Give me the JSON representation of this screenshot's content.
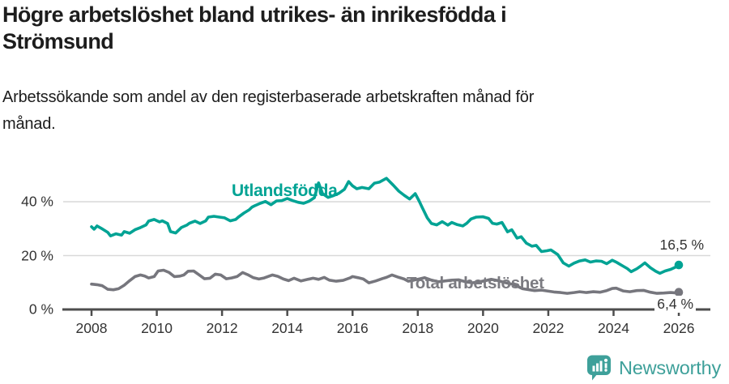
{
  "header": {
    "title_line1": "Högre arbetslöshet bland utrikes- än inrikesfödda i",
    "title_line2": "Strömsund",
    "subtitle_line1": "Arbetssökande som andel av den registerbaserade arbetskraften månad för",
    "subtitle_line2": "månad."
  },
  "colors": {
    "foreign_born_series": "#00A394",
    "total_series": "#76767D",
    "grid": "#D9D9D9",
    "axis": "#4D4D4D",
    "tick_text": "#333333",
    "brand": "#3EA09A"
  },
  "chart_data": {
    "type": "line",
    "title": "Högre arbetslöshet bland utrikes- än inrikesfödda i Strömsund",
    "subtitle": "Arbetssökande som andel av den registerbaserade arbetskraften månad för månad.",
    "unit": "%",
    "grid": "horizontal",
    "legend": "inline-labels",
    "x_axis": {
      "ticks": [
        2008,
        2010,
        2012,
        2014,
        2016,
        2018,
        2020,
        2022,
        2024,
        2026
      ],
      "range": [
        2007.1,
        2026.95
      ]
    },
    "y_axis": {
      "ticks": [
        {
          "value": 0,
          "label": "0 %"
        },
        {
          "value": 20,
          "label": "20 %"
        },
        {
          "value": 40,
          "label": "40 %"
        }
      ],
      "range": [
        0,
        52
      ]
    },
    "series": [
      {
        "name": "Utlandsfödda",
        "color": "#00A394",
        "end_label": "16,5 %",
        "end_value": 16.5,
        "points": [
          [
            2008.0,
            30.7
          ],
          [
            2008.08,
            29.8
          ],
          [
            2008.17,
            31.0
          ],
          [
            2008.33,
            29.9
          ],
          [
            2008.5,
            28.6
          ],
          [
            2008.58,
            27.3
          ],
          [
            2008.75,
            28.1
          ],
          [
            2008.92,
            27.6
          ],
          [
            2009.0,
            28.9
          ],
          [
            2009.17,
            28.3
          ],
          [
            2009.33,
            29.6
          ],
          [
            2009.5,
            30.4
          ],
          [
            2009.67,
            31.4
          ],
          [
            2009.75,
            32.8
          ],
          [
            2009.92,
            33.4
          ],
          [
            2010.08,
            32.5
          ],
          [
            2010.17,
            32.9
          ],
          [
            2010.33,
            31.9
          ],
          [
            2010.42,
            28.9
          ],
          [
            2010.58,
            28.4
          ],
          [
            2010.75,
            30.4
          ],
          [
            2010.92,
            31.3
          ],
          [
            2011.0,
            32.0
          ],
          [
            2011.17,
            32.8
          ],
          [
            2011.33,
            31.9
          ],
          [
            2011.5,
            32.9
          ],
          [
            2011.58,
            34.3
          ],
          [
            2011.75,
            34.6
          ],
          [
            2011.92,
            34.3
          ],
          [
            2012.08,
            34.0
          ],
          [
            2012.25,
            32.9
          ],
          [
            2012.42,
            33.4
          ],
          [
            2012.5,
            34.3
          ],
          [
            2012.67,
            35.8
          ],
          [
            2012.83,
            37.0
          ],
          [
            2012.92,
            38.0
          ],
          [
            2013.0,
            38.5
          ],
          [
            2013.17,
            39.4
          ],
          [
            2013.33,
            40.1
          ],
          [
            2013.5,
            38.9
          ],
          [
            2013.67,
            40.3
          ],
          [
            2013.83,
            40.4
          ],
          [
            2014.0,
            41.2
          ],
          [
            2014.17,
            40.4
          ],
          [
            2014.33,
            39.8
          ],
          [
            2014.5,
            39.4
          ],
          [
            2014.67,
            40.2
          ],
          [
            2014.83,
            41.5
          ],
          [
            2014.96,
            47.0
          ],
          [
            2015.08,
            43.0
          ],
          [
            2015.25,
            41.6
          ],
          [
            2015.42,
            42.3
          ],
          [
            2015.58,
            43.1
          ],
          [
            2015.75,
            44.6
          ],
          [
            2015.88,
            47.5
          ],
          [
            2016.0,
            45.9
          ],
          [
            2016.13,
            44.8
          ],
          [
            2016.29,
            45.3
          ],
          [
            2016.5,
            44.8
          ],
          [
            2016.67,
            46.9
          ],
          [
            2016.83,
            47.3
          ],
          [
            2017.04,
            48.7
          ],
          [
            2017.25,
            46.1
          ],
          [
            2017.42,
            43.9
          ],
          [
            2017.58,
            42.4
          ],
          [
            2017.75,
            41.0
          ],
          [
            2017.92,
            43.0
          ],
          [
            2018.04,
            40.3
          ],
          [
            2018.13,
            38.0
          ],
          [
            2018.29,
            34.0
          ],
          [
            2018.42,
            31.9
          ],
          [
            2018.58,
            31.4
          ],
          [
            2018.75,
            32.6
          ],
          [
            2018.92,
            31.3
          ],
          [
            2019.04,
            32.3
          ],
          [
            2019.21,
            31.5
          ],
          [
            2019.38,
            31.0
          ],
          [
            2019.5,
            32.0
          ],
          [
            2019.63,
            33.6
          ],
          [
            2019.79,
            34.3
          ],
          [
            2020.0,
            34.4
          ],
          [
            2020.17,
            33.8
          ],
          [
            2020.29,
            32.0
          ],
          [
            2020.42,
            31.7
          ],
          [
            2020.58,
            32.3
          ],
          [
            2020.75,
            28.8
          ],
          [
            2020.88,
            29.6
          ],
          [
            2021.04,
            26.5
          ],
          [
            2021.17,
            27.0
          ],
          [
            2021.33,
            24.6
          ],
          [
            2021.5,
            23.5
          ],
          [
            2021.63,
            23.8
          ],
          [
            2021.79,
            21.5
          ],
          [
            2021.96,
            21.8
          ],
          [
            2022.08,
            22.1
          ],
          [
            2022.29,
            20.4
          ],
          [
            2022.46,
            17.3
          ],
          [
            2022.63,
            16.1
          ],
          [
            2022.79,
            17.2
          ],
          [
            2022.96,
            18.0
          ],
          [
            2023.13,
            18.4
          ],
          [
            2023.29,
            17.6
          ],
          [
            2023.46,
            18.0
          ],
          [
            2023.63,
            17.9
          ],
          [
            2023.79,
            17.0
          ],
          [
            2023.96,
            18.3
          ],
          [
            2024.08,
            17.6
          ],
          [
            2024.29,
            16.1
          ],
          [
            2024.42,
            15.2
          ],
          [
            2024.54,
            14.0
          ],
          [
            2024.71,
            15.1
          ],
          [
            2024.83,
            16.1
          ],
          [
            2024.96,
            17.3
          ],
          [
            2025.13,
            15.5
          ],
          [
            2025.29,
            14.2
          ],
          [
            2025.42,
            13.4
          ],
          [
            2025.58,
            14.3
          ],
          [
            2025.75,
            14.9
          ],
          [
            2025.88,
            15.6
          ],
          [
            2026.0,
            16.5
          ]
        ]
      },
      {
        "name": "Total arbetslöshet",
        "color": "#76767D",
        "end_label": "6,4 %",
        "end_value": 6.4,
        "points": [
          [
            2008.0,
            9.4
          ],
          [
            2008.17,
            9.2
          ],
          [
            2008.33,
            8.8
          ],
          [
            2008.5,
            7.5
          ],
          [
            2008.67,
            7.3
          ],
          [
            2008.83,
            7.7
          ],
          [
            2009.0,
            9.0
          ],
          [
            2009.17,
            10.7
          ],
          [
            2009.33,
            12.2
          ],
          [
            2009.5,
            12.8
          ],
          [
            2009.63,
            12.4
          ],
          [
            2009.75,
            11.7
          ],
          [
            2009.92,
            12.2
          ],
          [
            2010.04,
            14.3
          ],
          [
            2010.21,
            14.6
          ],
          [
            2010.38,
            13.7
          ],
          [
            2010.54,
            12.2
          ],
          [
            2010.71,
            12.4
          ],
          [
            2010.83,
            12.8
          ],
          [
            2010.96,
            14.2
          ],
          [
            2011.13,
            14.3
          ],
          [
            2011.29,
            12.9
          ],
          [
            2011.46,
            11.4
          ],
          [
            2011.63,
            11.6
          ],
          [
            2011.79,
            13.1
          ],
          [
            2011.96,
            12.8
          ],
          [
            2012.13,
            11.4
          ],
          [
            2012.29,
            11.7
          ],
          [
            2012.46,
            12.2
          ],
          [
            2012.63,
            13.7
          ],
          [
            2012.79,
            12.9
          ],
          [
            2012.96,
            11.8
          ],
          [
            2013.13,
            11.3
          ],
          [
            2013.29,
            11.7
          ],
          [
            2013.54,
            12.8
          ],
          [
            2013.71,
            12.3
          ],
          [
            2013.88,
            11.3
          ],
          [
            2014.04,
            10.7
          ],
          [
            2014.21,
            11.6
          ],
          [
            2014.42,
            10.6
          ],
          [
            2014.63,
            11.2
          ],
          [
            2014.79,
            11.6
          ],
          [
            2014.96,
            11.2
          ],
          [
            2015.13,
            11.9
          ],
          [
            2015.29,
            10.9
          ],
          [
            2015.5,
            10.5
          ],
          [
            2015.71,
            10.8
          ],
          [
            2015.92,
            11.7
          ],
          [
            2016.0,
            12.2
          ],
          [
            2016.17,
            11.8
          ],
          [
            2016.33,
            11.3
          ],
          [
            2016.5,
            9.9
          ],
          [
            2016.71,
            10.6
          ],
          [
            2016.92,
            11.5
          ],
          [
            2017.04,
            11.9
          ],
          [
            2017.21,
            12.8
          ],
          [
            2017.42,
            11.9
          ],
          [
            2017.58,
            11.3
          ],
          [
            2017.71,
            10.5
          ],
          [
            2017.88,
            10.9
          ],
          [
            2018.04,
            11.3
          ],
          [
            2018.21,
            11.8
          ],
          [
            2018.42,
            10.9
          ],
          [
            2018.63,
            10.3
          ],
          [
            2018.83,
            10.6
          ],
          [
            2019.04,
            10.9
          ],
          [
            2019.25,
            11.0
          ],
          [
            2019.46,
            10.3
          ],
          [
            2019.67,
            9.9
          ],
          [
            2019.88,
            10.3
          ],
          [
            2020.04,
            10.6
          ],
          [
            2020.25,
            11.2
          ],
          [
            2020.46,
            10.7
          ],
          [
            2020.67,
            10.0
          ],
          [
            2020.88,
            9.4
          ],
          [
            2021.04,
            8.7
          ],
          [
            2021.21,
            7.7
          ],
          [
            2021.42,
            7.3
          ],
          [
            2021.58,
            7.0
          ],
          [
            2021.79,
            7.2
          ],
          [
            2021.96,
            6.9
          ],
          [
            2022.17,
            6.5
          ],
          [
            2022.38,
            6.3
          ],
          [
            2022.58,
            6.0
          ],
          [
            2022.79,
            6.3
          ],
          [
            2022.96,
            6.6
          ],
          [
            2023.17,
            6.3
          ],
          [
            2023.38,
            6.6
          ],
          [
            2023.58,
            6.4
          ],
          [
            2023.79,
            7.0
          ],
          [
            2023.96,
            7.8
          ],
          [
            2024.08,
            7.9
          ],
          [
            2024.29,
            6.9
          ],
          [
            2024.5,
            6.6
          ],
          [
            2024.71,
            7.0
          ],
          [
            2024.92,
            7.1
          ],
          [
            2025.13,
            6.4
          ],
          [
            2025.33,
            6.0
          ],
          [
            2025.54,
            6.1
          ],
          [
            2025.75,
            6.3
          ],
          [
            2025.88,
            6.2
          ],
          [
            2026.0,
            6.4
          ]
        ]
      }
    ]
  },
  "footer": {
    "brand_name": "Newsworthy"
  }
}
